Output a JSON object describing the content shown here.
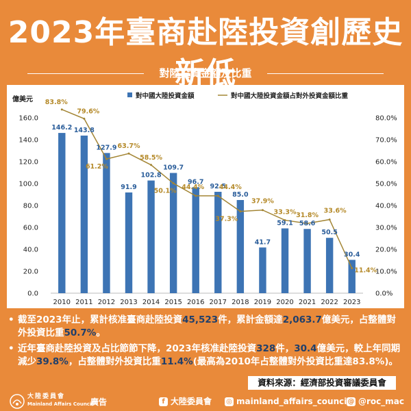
{
  "header": {
    "title": "2023年臺商赴陸投資創歷史新低",
    "subtitle": "對陸投資金額及比重"
  },
  "chart_data": {
    "type": "bar",
    "categories": [
      "2010",
      "2011",
      "2012",
      "2013",
      "2014",
      "2015",
      "2016",
      "2017",
      "2018",
      "2019",
      "2020",
      "2021",
      "2022",
      "2023"
    ],
    "series": [
      {
        "name": "對中國大陸投資金額",
        "type": "bar",
        "axis": "left",
        "values": [
          146.2,
          143.8,
          127.9,
          91.9,
          102.8,
          109.7,
          96.7,
          92.5,
          85.0,
          41.7,
          59.1,
          58.6,
          50.5,
          30.4
        ],
        "labels": [
          "146.2",
          "143.8",
          "127.9",
          "91.9",
          "102.8",
          "109.7",
          "96.7",
          "92.5",
          "85.0",
          "41.7",
          "59.1",
          "58.6",
          "50.5",
          "30.4"
        ]
      },
      {
        "name": "對中國大陸投資金額占對外投資金額比重",
        "type": "line",
        "axis": "right",
        "values": [
          83.8,
          79.6,
          61.2,
          63.7,
          58.5,
          50.1,
          44.4,
          44.4,
          37.3,
          37.9,
          33.3,
          31.8,
          33.6,
          11.4
        ],
        "labels": [
          "83.8%",
          "79.6%",
          "61.2%",
          "63.7%",
          "58.5%",
          "50.1%",
          "44.4%",
          "44.4%",
          "37.3%",
          "37.9%",
          "33.3%",
          "31.8%",
          "33.6%",
          "11.4%"
        ]
      }
    ],
    "ylabel": "億美元",
    "ylim": [
      0,
      160
    ],
    "y_ticks": [
      "0.0",
      "20.0",
      "40.0",
      "60.0",
      "80.0",
      "100.0",
      "120.0",
      "140.0",
      "160.0"
    ],
    "y2lim": [
      0,
      80
    ],
    "y2_ticks": [
      "0.0%",
      "10.0%",
      "20.0%",
      "30.0%",
      "40.0%",
      "50.0%",
      "60.0%",
      "70.0%",
      "80.0%"
    ],
    "legend_position": "top",
    "grid": false,
    "colors": {
      "bar": "#3d74b4",
      "line": "#a38534",
      "bar_label": "#2a5d9a",
      "line_label": "#b58a2a"
    }
  },
  "notes": [
    {
      "bullet": "•",
      "segments": [
        {
          "text": "截至2023年止，累計核准臺商赴陸投資",
          "hl": false
        },
        {
          "text": "45,523",
          "hl": true
        },
        {
          "text": "件，累計金額達",
          "hl": false
        },
        {
          "text": "2,063.7",
          "hl": true
        },
        {
          "text": "億美元，占整體對外投資比重",
          "hl": false
        },
        {
          "text": "50.7%",
          "hl": true
        },
        {
          "text": "。",
          "hl": false
        }
      ]
    },
    {
      "bullet": "•",
      "segments": [
        {
          "text": "近年臺商赴陸投資及占比節節下降，2023年核准赴陸投資",
          "hl": false
        },
        {
          "text": "328",
          "hl": true
        },
        {
          "text": "件，",
          "hl": false
        },
        {
          "text": "30.4",
          "hl": true
        },
        {
          "text": "億美元，較上年同期減少",
          "hl": false
        },
        {
          "text": "39.8%",
          "hl": true
        },
        {
          "text": "，占整體對外投資比重",
          "hl": false
        },
        {
          "text": "11.4%",
          "hl": true
        },
        {
          "text": "(最高為2010年占整體對外投資比重達83.8%)。",
          "hl": false
        }
      ]
    }
  ],
  "source": "資料來源：經濟部投資審議委員會",
  "footer": {
    "org_name_cn": "大陸委員會",
    "org_name_en": "Mainland Affairs Council",
    "ad_label": "廣告",
    "social": [
      {
        "icon": "facebook-icon",
        "glyph": "f",
        "text": "大陸委員會"
      },
      {
        "icon": "instagram-icon",
        "glyph": "◎",
        "text": "mainland_affairs_council"
      },
      {
        "icon": "threads-icon",
        "glyph": "@",
        "text": "@roc_mac"
      }
    ]
  }
}
